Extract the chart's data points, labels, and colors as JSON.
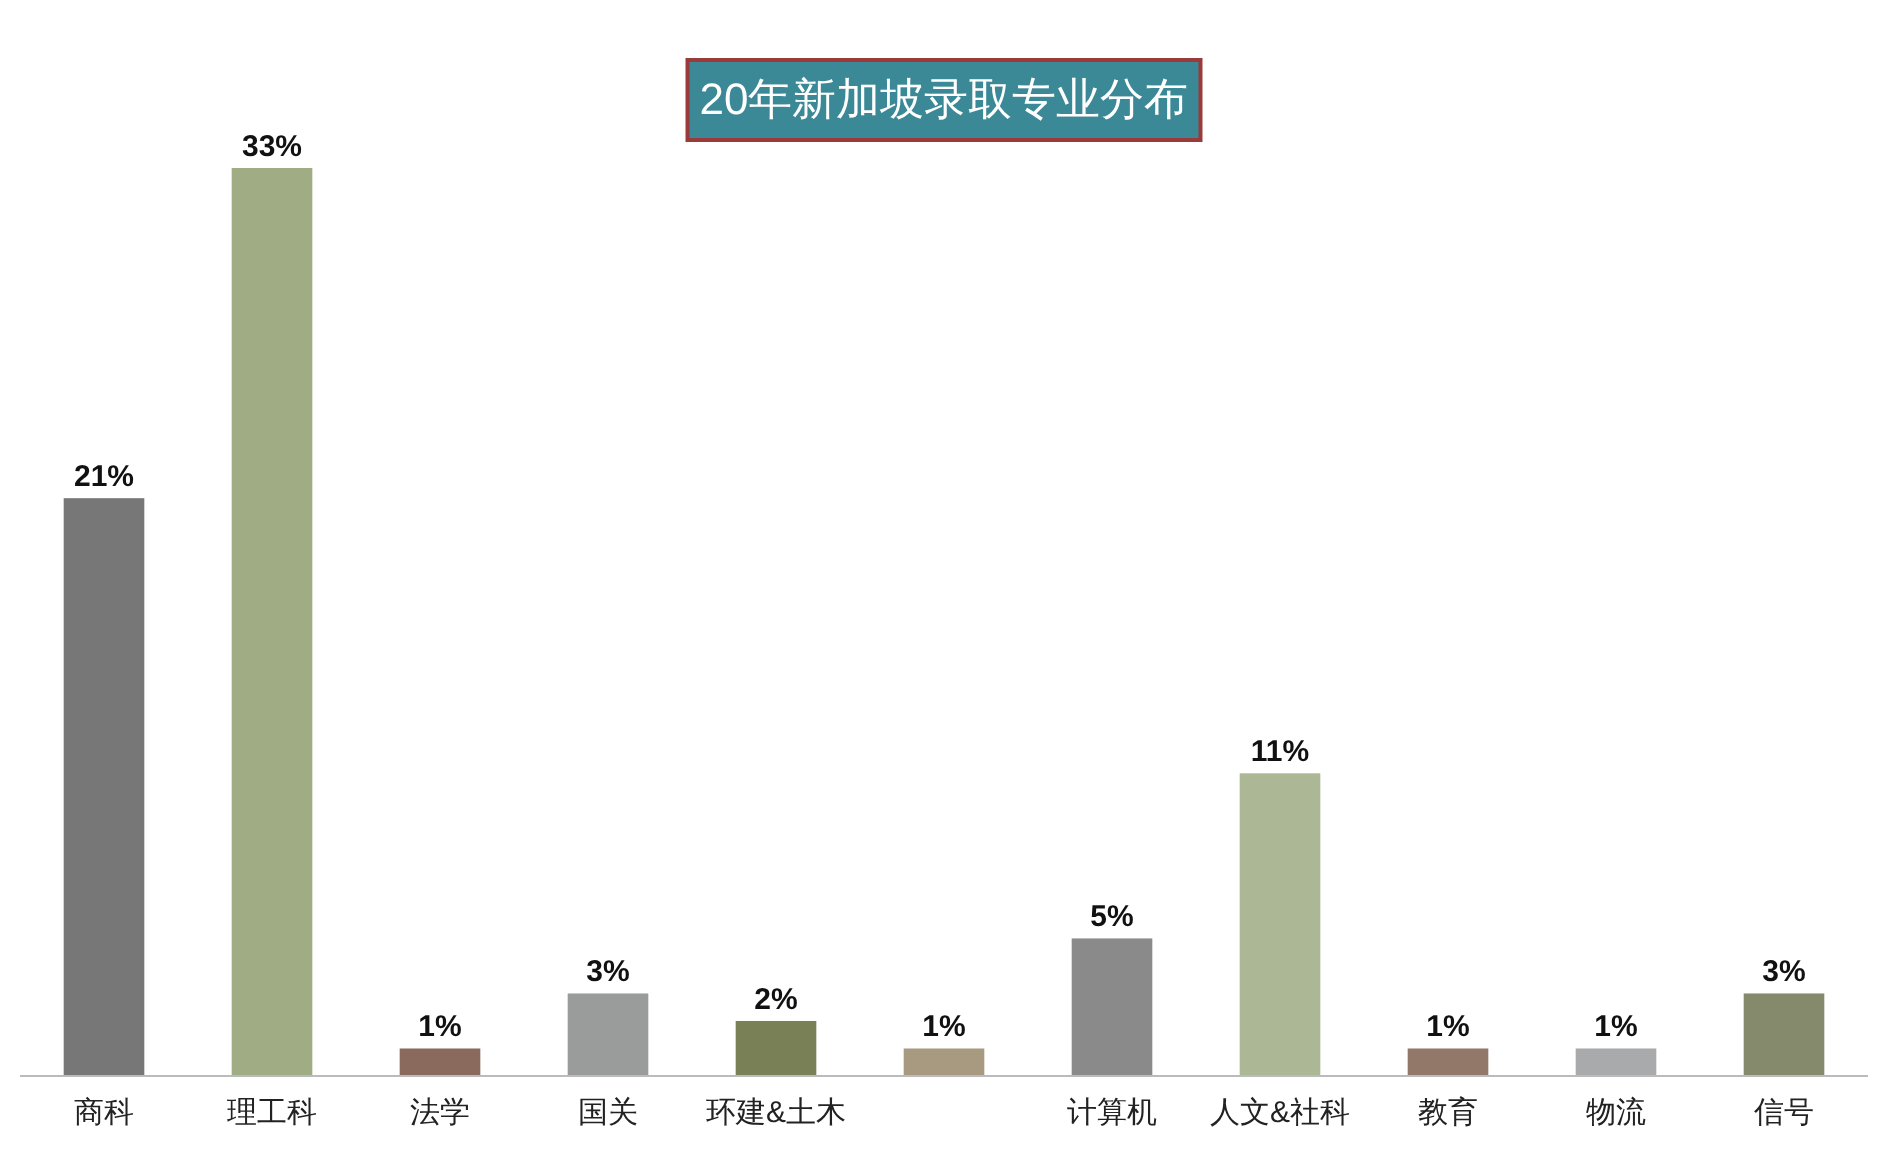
{
  "chart_data": {
    "type": "bar",
    "title": "20年新加坡录取专业分布",
    "categories": [
      "商科",
      "理工科",
      "法学",
      "国关",
      "环建&土木",
      null,
      "计算机",
      "人文&社科",
      "教育",
      "物流",
      "信号"
    ],
    "values": [
      21,
      33,
      1,
      3,
      2,
      1,
      5,
      11,
      1,
      1,
      3
    ],
    "value_labels": [
      "21%",
      "33%",
      "1%",
      "3%",
      "2%",
      "1%",
      "5%",
      "11%",
      "1%",
      "1%",
      "3%"
    ],
    "colors": [
      "#777777",
      "#9fac84",
      "#8a6a5c",
      "#9a9c9c",
      "#7a8056",
      "#a89a80",
      "#8a8a8a",
      "#abb795",
      "#927868",
      "#a8aaab",
      "#858a6c"
    ]
  }
}
